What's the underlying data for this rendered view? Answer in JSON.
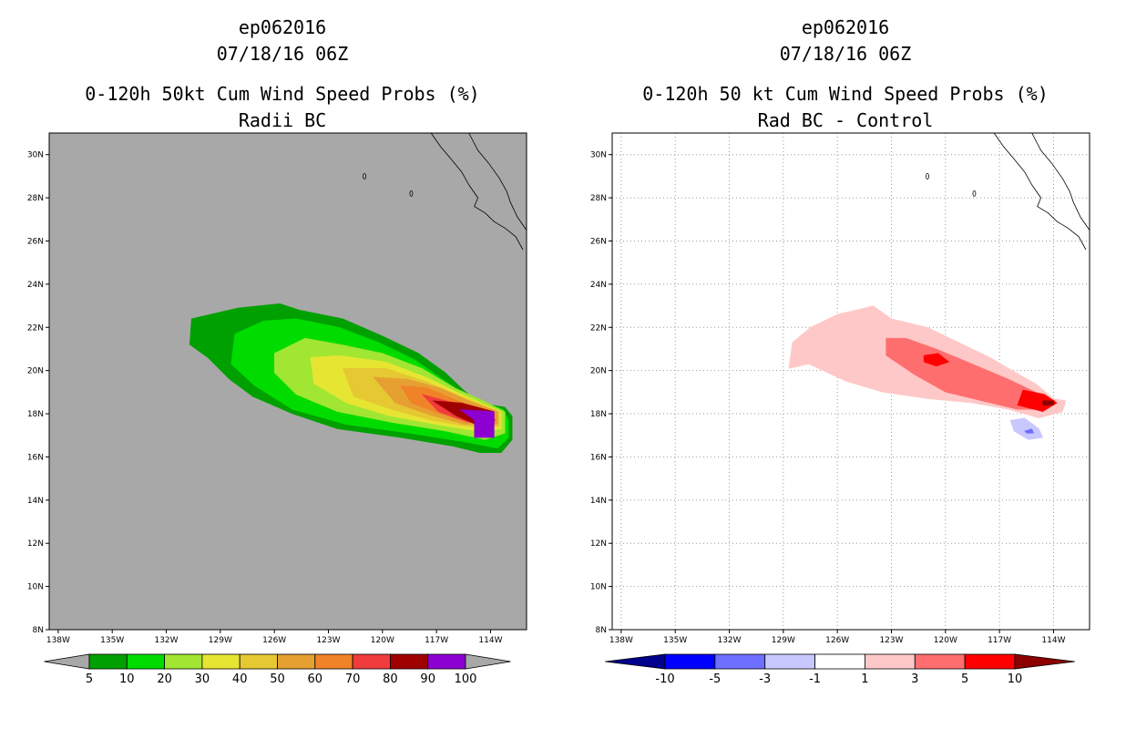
{
  "left": {
    "title1": "ep062016",
    "title2": "07/18/16 06Z",
    "title3": "0-120h 50kt Cum Wind Speed Probs (%)",
    "title4": "Radii BC",
    "colorbar_labels": [
      "5",
      "10",
      "20",
      "30",
      "40",
      "50",
      "60",
      "70",
      "80",
      "90",
      "100"
    ],
    "colorbar_colors": [
      "#a8a8a8",
      "#00a000",
      "#00dc00",
      "#a0e632",
      "#e6e632",
      "#e6c832",
      "#e6a032",
      "#f08228",
      "#f03c3c",
      "#a00000",
      "#8c00d2",
      "#a8a8a8"
    ]
  },
  "right": {
    "title1": "ep062016",
    "title2": "07/18/16 06Z",
    "title3": "0-120h 50 kt Cum Wind Speed Probs (%)",
    "title4": "Rad BC - Control",
    "colorbar_labels": [
      "-10",
      "-5",
      "-3",
      "-1",
      "1",
      "3",
      "5",
      "10"
    ],
    "colorbar_colors": [
      "#00008c",
      "#0000ff",
      "#6e6eff",
      "#c8c8ff",
      "#ffffff",
      "#ffc8c8",
      "#ff6e6e",
      "#ff0000",
      "#8c0000"
    ]
  },
  "axes": {
    "lat_labels": [
      "8N",
      "10N",
      "12N",
      "14N",
      "16N",
      "18N",
      "20N",
      "22N",
      "24N",
      "26N",
      "28N",
      "30N"
    ],
    "lon_labels": [
      "138W",
      "135W",
      "132W",
      "129W",
      "126W",
      "123W",
      "120W",
      "117W",
      "114W"
    ]
  },
  "chart_data": [
    {
      "type": "heatmap",
      "title": "0-120h 50kt Cum Wind Speed Probs (%) - Radii BC",
      "units": "%",
      "lat_range": [
        8,
        31
      ],
      "lon_range": [
        -138.5,
        -112
      ],
      "levels": [
        5,
        10,
        20,
        30,
        40,
        50,
        60,
        70,
        80,
        90,
        100
      ],
      "contours": [
        {
          "level": 5,
          "polygon": [
            [
              -130.6,
              22.4
            ],
            [
              -128,
              22.9
            ],
            [
              -125.7,
              23.1
            ],
            [
              -124.6,
              22.8
            ],
            [
              -122.2,
              22.4
            ],
            [
              -120,
              21.6
            ],
            [
              -118,
              20.8
            ],
            [
              -116.5,
              19.9
            ],
            [
              -115.5,
              19.1
            ],
            [
              -114.6,
              18.5
            ],
            [
              -113.2,
              18.3
            ],
            [
              -112.8,
              17.9
            ],
            [
              -112.8,
              16.8
            ],
            [
              -113.4,
              16.2
            ],
            [
              -114.6,
              16.2
            ],
            [
              -116.1,
              16.5
            ],
            [
              -119,
              16.9
            ],
            [
              -122.5,
              17.3
            ],
            [
              -125,
              18
            ],
            [
              -127.2,
              18.8
            ],
            [
              -128.5,
              19.6
            ],
            [
              -129.7,
              20.6
            ],
            [
              -130.7,
              21.2
            ]
          ]
        },
        {
          "level": 10,
          "polygon": [
            [
              -128.2,
              21.7
            ],
            [
              -126.6,
              22.3
            ],
            [
              -124.8,
              22.4
            ],
            [
              -122.4,
              22
            ],
            [
              -120.2,
              21.3
            ],
            [
              -118.2,
              20.5
            ],
            [
              -116.5,
              19.5
            ],
            [
              -115.2,
              18.8
            ],
            [
              -113.3,
              18.2
            ],
            [
              -113,
              17.7
            ],
            [
              -113,
              16.9
            ],
            [
              -113.6,
              16.4
            ],
            [
              -115.5,
              16.7
            ],
            [
              -118.5,
              17.1
            ],
            [
              -122,
              17.5
            ],
            [
              -125,
              18.2
            ],
            [
              -127.1,
              19.3
            ],
            [
              -128.4,
              20.3
            ]
          ]
        },
        {
          "level": 20,
          "polygon": [
            [
              -126,
              20.8
            ],
            [
              -124.3,
              21.5
            ],
            [
              -122.3,
              21.2
            ],
            [
              -120,
              20.8
            ],
            [
              -117.8,
              20.1
            ],
            [
              -116,
              19.2
            ],
            [
              -114.4,
              18.6
            ],
            [
              -113.2,
              18.1
            ],
            [
              -113.2,
              17.1
            ],
            [
              -114.3,
              16.8
            ],
            [
              -116.5,
              17.2
            ],
            [
              -119.5,
              17.6
            ],
            [
              -122.5,
              18.1
            ],
            [
              -124.8,
              18.9
            ],
            [
              -126,
              19.9
            ]
          ]
        },
        {
          "level": 30,
          "polygon": [
            [
              -124,
              20.6
            ],
            [
              -122.4,
              20.7
            ],
            [
              -119.8,
              20.4
            ],
            [
              -117.6,
              19.7
            ],
            [
              -115.6,
              18.9
            ],
            [
              -113.4,
              18.1
            ],
            [
              -113.4,
              17.3
            ],
            [
              -114.8,
              17.2
            ],
            [
              -117,
              17.5
            ],
            [
              -119.6,
              17.9
            ],
            [
              -122,
              18.5
            ],
            [
              -123.8,
              19.4
            ]
          ]
        },
        {
          "level": 40,
          "polygon": [
            [
              -122.2,
              20.1
            ],
            [
              -119.8,
              20.1
            ],
            [
              -117.6,
              19.5
            ],
            [
              -115.6,
              18.8
            ],
            [
              -113.5,
              18.1
            ],
            [
              -113.5,
              17.4
            ],
            [
              -115.2,
              17.4
            ],
            [
              -117.3,
              17.7
            ],
            [
              -119.5,
              18.2
            ],
            [
              -121.6,
              18.8
            ]
          ]
        },
        {
          "level": 50,
          "polygon": [
            [
              -120.5,
              19.7
            ],
            [
              -118.6,
              19.6
            ],
            [
              -116.8,
              19.2
            ],
            [
              -115.2,
              18.6
            ],
            [
              -113.6,
              18.1
            ],
            [
              -113.6,
              17.5
            ],
            [
              -115.4,
              17.5
            ],
            [
              -117.2,
              17.9
            ],
            [
              -119.3,
              18.5
            ]
          ]
        },
        {
          "level": 60,
          "polygon": [
            [
              -119,
              19.3
            ],
            [
              -117.5,
              19.2
            ],
            [
              -115.8,
              18.6
            ],
            [
              -114.4,
              18.2
            ],
            [
              -113.7,
              17.6
            ],
            [
              -115.3,
              17.6
            ],
            [
              -116.8,
              18
            ],
            [
              -118.4,
              18.5
            ]
          ]
        },
        {
          "level": 70,
          "polygon": [
            [
              -117.8,
              18.9
            ],
            [
              -116,
              18.5
            ],
            [
              -114.4,
              18.2
            ],
            [
              -113.7,
              17.7
            ],
            [
              -115.2,
              17.6
            ],
            [
              -116.9,
              18.1
            ]
          ]
        },
        {
          "level": 80,
          "polygon": [
            [
              -117.2,
              18.6
            ],
            [
              -115.6,
              18.5
            ],
            [
              -113.8,
              18.1
            ],
            [
              -113.8,
              17.5
            ],
            [
              -114.8,
              17.5
            ],
            [
              -115.9,
              17.9
            ]
          ]
        },
        {
          "level": 90,
          "polygon": [
            [
              -115.7,
              18.2
            ],
            [
              -113.8,
              18.1
            ],
            [
              -113.8,
              16.9
            ],
            [
              -114.9,
              16.9
            ],
            [
              -114.9,
              17.7
            ]
          ]
        }
      ]
    },
    {
      "type": "heatmap",
      "title": "0-120h 50 kt Cum Wind Speed Probs (%) - Rad BC - Control",
      "units": "%",
      "lat_range": [
        8,
        31
      ],
      "lon_range": [
        -138.5,
        -112
      ],
      "levels": [
        -10,
        -5,
        -3,
        -1,
        1,
        3,
        5,
        10
      ],
      "contours": [
        {
          "level": 1,
          "polygon": [
            [
              -128.5,
              21.3
            ],
            [
              -127.5,
              22
            ],
            [
              -126,
              22.6
            ],
            [
              -124,
              23
            ],
            [
              -123,
              22.4
            ],
            [
              -121,
              22
            ],
            [
              -119.5,
              21.4
            ],
            [
              -117.5,
              20.6
            ],
            [
              -116.5,
              20.1
            ],
            [
              -115,
              19.4
            ],
            [
              -114,
              18.7
            ],
            [
              -113.3,
              18.6
            ],
            [
              -113.5,
              18.1
            ],
            [
              -114.8,
              17.8
            ],
            [
              -116.5,
              18.2
            ],
            [
              -118.5,
              18.5
            ],
            [
              -121,
              18.7
            ],
            [
              -123.5,
              19
            ],
            [
              -125.5,
              19.5
            ],
            [
              -127.6,
              20.3
            ],
            [
              -128.7,
              20.1
            ]
          ]
        },
        {
          "level": 3,
          "polygon": [
            [
              -123.3,
              21.5
            ],
            [
              -122.2,
              21.5
            ],
            [
              -120.5,
              21
            ],
            [
              -118.5,
              20.3
            ],
            [
              -116.5,
              19.6
            ],
            [
              -115,
              19
            ],
            [
              -113.9,
              18.6
            ],
            [
              -114.4,
              18.2
            ],
            [
              -116,
              18.2
            ],
            [
              -118,
              18.6
            ],
            [
              -120,
              19
            ],
            [
              -121.7,
              19.8
            ],
            [
              -123.3,
              20.7
            ]
          ]
        },
        {
          "level": 5,
          "polygon": [
            [
              -115.7,
              19.1
            ],
            [
              -114.5,
              18.9
            ],
            [
              -113.8,
              18.5
            ],
            [
              -114.6,
              18.1
            ],
            [
              -116,
              18.4
            ]
          ]
        },
        {
          "level": 5,
          "polygon": [
            [
              -121.2,
              20.7
            ],
            [
              -120.4,
              20.8
            ],
            [
              -119.8,
              20.4
            ],
            [
              -120.5,
              20.2
            ],
            [
              -121.2,
              20.4
            ]
          ]
        },
        {
          "level": 10,
          "polygon": [
            [
              -114.6,
              18.6
            ],
            [
              -114.0,
              18.6
            ],
            [
              -114.0,
              18.4
            ],
            [
              -114.6,
              18.4
            ]
          ]
        },
        {
          "level": -1,
          "polygon": [
            [
              -116.4,
              17.7
            ],
            [
              -115.6,
              17.8
            ],
            [
              -114.8,
              17.3
            ],
            [
              -114.6,
              16.9
            ],
            [
              -115.4,
              16.8
            ],
            [
              -116.2,
              17.2
            ]
          ]
        },
        {
          "level": -3,
          "polygon": [
            [
              -115.6,
              17.2
            ],
            [
              -115.2,
              17.3
            ],
            [
              -115.1,
              17.1
            ],
            [
              -115.5,
              17.1
            ]
          ]
        }
      ]
    }
  ]
}
